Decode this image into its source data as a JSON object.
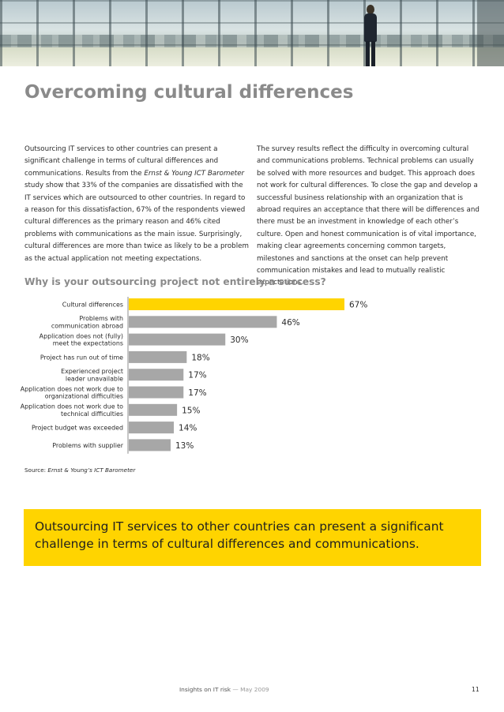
{
  "title": "Overcoming cultural differences",
  "intro_left": {
    "part1": "Outsourcing IT services to other countries can present a significant challenge in terms of cultural differences and communications. Results from the ",
    "emph": "Ernst & Young ICT Barometer",
    "part2": " study show that 33% of the companies are dissatisfied with the IT services which are outsourced to other countries. In regard to a reason for this dissatisfaction, 67% of the respondents viewed cultural differences as the primary reason and 46% cited problems with communications as the main issue. Surprisingly, cultural differences are more than twice as likely to be a problem as the actual application not meeting expectations."
  },
  "intro_right": "The survey results reflect the difficulty in overcoming cultural and communications problems. Technical problems can usually be solved with more resources and budget. This approach does not work for cultural differences. To close the gap and develop a successful business relationship with an organization that is abroad requires an acceptance that there will be differences and there must be an investment in knowledge of each other’s culture. Open and honest communication is of vital importance, making clear agreements concerning common targets, milestones and sanctions at the onset can help prevent communication mistakes and lead to mutually realistic expectations.",
  "chart_heading": "Why is your outsourcing project not entirely a success?",
  "chart_data": {
    "type": "bar",
    "orientation": "horizontal",
    "categories": [
      [
        "Cultural differences"
      ],
      [
        "Problems with",
        "communication abroad"
      ],
      [
        "Application does not (fully)",
        "meet the expectations"
      ],
      [
        "Project has run out of time"
      ],
      [
        "Experienced project",
        "leader unavailable"
      ],
      [
        "Application does not work due to",
        "organizational difficulties"
      ],
      [
        "Application does not work due to",
        "technical difficulties"
      ],
      [
        "Project budget was exceeded"
      ],
      [
        "Problems with supplier"
      ]
    ],
    "values": [
      67,
      46,
      30,
      18,
      17,
      17,
      15,
      14,
      13
    ],
    "value_labels": [
      "67%",
      "46%",
      "30%",
      "18%",
      "17%",
      "17%",
      "15%",
      "14%",
      "13%"
    ],
    "highlight_index": 0,
    "colors": {
      "highlight": "#ffd400",
      "bar": "#a7a7a7",
      "axis": "#8c8c8c"
    }
  },
  "source": {
    "label": "Source: ",
    "text": "Ernst & Young’s ICT Barometer"
  },
  "callout": "Outsourcing IT services to other countries can present a significant challenge in terms of cultural differences and communications.",
  "footer": {
    "publication": "Insights on IT risk",
    "separator": " — ",
    "date": "May 2009",
    "page": "11"
  },
  "colors": {
    "accent": "#ffd400",
    "heading": "#8a8a8a"
  }
}
